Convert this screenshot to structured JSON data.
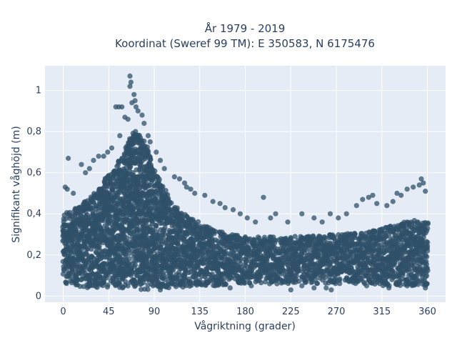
{
  "chart_data": {
    "type": "scatter",
    "title_line1": "År 1979 - 2019",
    "title_line2": "Koordinat (Sweref 99 TM): E 350583, N 6175476",
    "xlabel": "Vågriktning (grader)",
    "ylabel": "Signifikant våghöjd (m)",
    "xlim": [
      -18,
      378
    ],
    "ylim": [
      -0.03,
      1.12
    ],
    "xticks": [
      0,
      45,
      90,
      135,
      180,
      225,
      270,
      315,
      360
    ],
    "xtick_labels": [
      "0",
      "45",
      "90",
      "135",
      "180",
      "225",
      "270",
      "315",
      "360"
    ],
    "yticks": [
      0,
      0.2,
      0.4,
      0.6,
      0.8,
      1
    ],
    "ytick_labels": [
      "0",
      "0,2",
      "0,4",
      "0,6",
      "0,8",
      "1"
    ],
    "grid": true,
    "colors": {
      "plot_bg": "#e5ecf6",
      "marker": "#2f5068",
      "text": "#2a3f5f"
    },
    "envelope": {
      "x": [
        0,
        10,
        20,
        30,
        40,
        50,
        60,
        65,
        70,
        75,
        80,
        85,
        90,
        100,
        110,
        120,
        135,
        150,
        180,
        225,
        270,
        300,
        315,
        330,
        345,
        360
      ],
      "min": [
        0.06,
        0.05,
        0.04,
        0.04,
        0.04,
        0.04,
        0.04,
        0.04,
        0.04,
        0.03,
        0.03,
        0.03,
        0.04,
        0.04,
        0.04,
        0.04,
        0.05,
        0.05,
        0.06,
        0.06,
        0.06,
        0.06,
        0.05,
        0.05,
        0.05,
        0.05
      ],
      "max": [
        0.4,
        0.42,
        0.46,
        0.5,
        0.56,
        0.62,
        0.7,
        0.76,
        0.8,
        0.8,
        0.76,
        0.7,
        0.62,
        0.52,
        0.44,
        0.4,
        0.36,
        0.32,
        0.29,
        0.29,
        0.3,
        0.31,
        0.33,
        0.35,
        0.37,
        0.36
      ]
    },
    "outliers": [
      [
        66,
        1.07
      ],
      [
        67,
        1.04
      ],
      [
        66,
        1.02
      ],
      [
        70,
        0.98
      ],
      [
        71,
        0.95
      ],
      [
        68,
        0.94
      ],
      [
        52,
        0.92
      ],
      [
        55,
        0.92
      ],
      [
        58,
        0.92
      ],
      [
        72,
        0.92
      ],
      [
        74,
        0.9
      ],
      [
        78,
        0.88
      ],
      [
        61,
        0.87
      ],
      [
        64,
        0.86
      ],
      [
        80,
        0.84
      ],
      [
        84,
        0.78
      ],
      [
        86,
        0.75
      ],
      [
        56,
        0.78
      ],
      [
        48,
        0.72
      ],
      [
        44,
        0.7
      ],
      [
        92,
        0.7
      ],
      [
        96,
        0.66
      ],
      [
        100,
        0.62
      ],
      [
        40,
        0.68
      ],
      [
        35,
        0.68
      ],
      [
        30,
        0.66
      ],
      [
        26,
        0.62
      ],
      [
        22,
        0.6
      ],
      [
        18,
        0.64
      ],
      [
        5,
        0.67
      ],
      [
        110,
        0.58
      ],
      [
        115,
        0.57
      ],
      [
        120,
        0.55
      ],
      [
        122,
        0.53
      ],
      [
        126,
        0.52
      ],
      [
        130,
        0.5
      ],
      [
        140,
        0.49
      ],
      [
        148,
        0.46
      ],
      [
        155,
        0.45
      ],
      [
        160,
        0.43
      ],
      [
        168,
        0.42
      ],
      [
        175,
        0.4
      ],
      [
        182,
        0.38
      ],
      [
        190,
        0.36
      ],
      [
        198,
        0.48
      ],
      [
        205,
        0.38
      ],
      [
        210,
        0.4
      ],
      [
        222,
        0.36
      ],
      [
        236,
        0.4
      ],
      [
        248,
        0.38
      ],
      [
        256,
        0.36
      ],
      [
        264,
        0.4
      ],
      [
        272,
        0.38
      ],
      [
        280,
        0.4
      ],
      [
        290,
        0.44
      ],
      [
        296,
        0.47
      ],
      [
        302,
        0.48
      ],
      [
        306,
        0.49
      ],
      [
        310,
        0.45
      ],
      [
        320,
        0.44
      ],
      [
        326,
        0.46
      ],
      [
        330,
        0.5
      ],
      [
        334,
        0.49
      ],
      [
        340,
        0.52
      ],
      [
        346,
        0.53
      ],
      [
        352,
        0.54
      ],
      [
        354,
        0.57
      ],
      [
        356,
        0.55
      ],
      [
        358,
        0.51
      ],
      [
        2,
        0.53
      ],
      [
        4,
        0.52
      ],
      [
        10,
        0.5
      ],
      [
        125,
        0.35
      ],
      [
        186,
        0.05
      ],
      [
        204,
        0.06
      ],
      [
        225,
        0.03
      ],
      [
        236,
        0.05
      ],
      [
        248,
        0.04
      ],
      [
        260,
        0.04
      ],
      [
        265,
        0.03
      ],
      [
        300,
        0.05
      ],
      [
        322,
        0.04
      ],
      [
        340,
        0.05
      ],
      [
        358,
        0.04
      ],
      [
        150,
        0.05
      ],
      [
        165,
        0.04
      ],
      [
        96,
        0.03
      ]
    ]
  }
}
